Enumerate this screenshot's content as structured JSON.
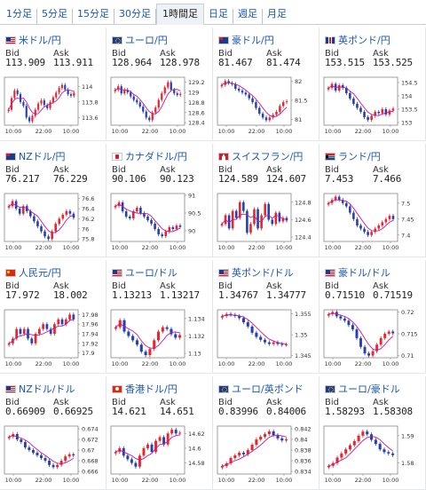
{
  "tabs": [
    {
      "label": "1分足",
      "active": false
    },
    {
      "label": "5分足",
      "active": false
    },
    {
      "label": "15分足",
      "active": false
    },
    {
      "label": "30分足",
      "active": false
    },
    {
      "label": "1時間足",
      "active": true
    },
    {
      "label": "日足",
      "active": false
    },
    {
      "label": "週足",
      "active": false
    },
    {
      "label": "月足",
      "active": false
    }
  ],
  "labels": {
    "bid": "Bid",
    "ask": "Ask"
  },
  "x_ticks": [
    "10:00",
    "22:00",
    "10:00"
  ],
  "colors": {
    "up": "#e8262b",
    "down": "#2440b8",
    "ma": "#c2189e",
    "link": "#1a56b0"
  },
  "pairs": [
    {
      "name": "米ドル/円",
      "flag": "f-us",
      "bid": "113.909",
      "ask": "113.911",
      "ticks": [
        "114",
        "113.8",
        "113.6"
      ],
      "lo": 113.5,
      "hi": 114.12,
      "series": [
        113.7,
        113.85,
        113.95,
        113.9,
        113.8,
        113.75,
        113.6,
        113.55,
        113.62,
        113.7,
        113.78,
        113.82,
        113.76,
        113.72,
        113.8,
        113.86,
        113.92,
        113.98,
        114.02,
        113.96,
        113.9,
        113.88,
        113.92
      ]
    },
    {
      "name": "ユーロ/円",
      "flag": "f-eu",
      "bid": "128.964",
      "ask": "128.978",
      "ticks": [
        "129.2",
        "129",
        "128.8",
        "128.6",
        "128.4"
      ],
      "lo": 128.35,
      "hi": 129.3,
      "series": [
        129.05,
        129.12,
        128.98,
        129.05,
        129.0,
        128.92,
        128.85,
        128.8,
        128.72,
        128.62,
        128.5,
        128.45,
        128.6,
        128.7,
        128.85,
        128.98,
        129.1,
        129.2,
        129.05,
        128.98,
        128.95,
        128.97
      ]
    },
    {
      "name": "豪ドル/円",
      "flag": "f-au",
      "bid": "81.467",
      "ask": "81.474",
      "ticks": [
        "82",
        "81.5",
        "81"
      ],
      "lo": 80.85,
      "hi": 82.1,
      "series": [
        81.9,
        82.0,
        81.95,
        81.92,
        81.8,
        81.75,
        81.7,
        81.65,
        81.55,
        81.45,
        81.3,
        81.15,
        81.05,
        80.98,
        81.05,
        81.12,
        81.2,
        81.35,
        81.45,
        81.47
      ]
    },
    {
      "name": "英ポンド/円",
      "flag": "f-gb",
      "bid": "153.515",
      "ask": "153.525",
      "ticks": [
        "154.5",
        "154",
        "153.5",
        "153"
      ],
      "lo": 152.9,
      "hi": 154.7,
      "series": [
        154.3,
        154.45,
        154.2,
        154.4,
        154.3,
        154.1,
        153.9,
        153.7,
        153.55,
        153.4,
        153.2,
        153.1,
        153.25,
        153.4,
        153.35,
        153.5,
        153.3,
        153.45,
        153.52
      ]
    },
    {
      "name": "NZドル/円",
      "flag": "f-nz",
      "bid": "76.217",
      "ask": "76.229",
      "ticks": [
        "76.6",
        "76.4",
        "76.2",
        "76",
        "75.8"
      ],
      "lo": 75.75,
      "hi": 76.7,
      "series": [
        76.45,
        76.55,
        76.4,
        76.3,
        76.45,
        76.35,
        76.25,
        76.15,
        76.05,
        75.95,
        75.85,
        75.8,
        75.95,
        76.1,
        76.2,
        76.28,
        76.35,
        76.3,
        76.22
      ]
    },
    {
      "name": "カナダドル/円",
      "flag": "f-ca",
      "bid": "90.106",
      "ask": "90.123",
      "ticks": [
        "91",
        "90.5",
        "90"
      ],
      "lo": 89.7,
      "hi": 91.05,
      "series": [
        90.7,
        90.8,
        90.55,
        90.4,
        90.35,
        90.55,
        90.65,
        90.5,
        90.4,
        90.3,
        90.2,
        90.05,
        89.9,
        89.85,
        89.98,
        90.1,
        90.05,
        90.15,
        90.11
      ]
    },
    {
      "name": "スイスフラン/円",
      "flag": "f-ch",
      "bid": "124.589",
      "ask": "124.607",
      "ticks": [
        "124.8",
        "124.6",
        "124.4"
      ],
      "lo": 124.35,
      "hi": 124.9,
      "series": [
        124.55,
        124.65,
        124.5,
        124.7,
        124.62,
        124.8,
        124.7,
        124.45,
        124.55,
        124.72,
        124.5,
        124.65,
        124.78,
        124.6,
        124.55,
        124.68,
        124.58,
        124.62,
        124.59
      ]
    },
    {
      "name": "ランド/円",
      "flag": "f-za",
      "bid": "7.453",
      "ask": "7.466",
      "ticks": [
        "7.5",
        "7.45",
        "7.4"
      ],
      "lo": 7.38,
      "hi": 7.53,
      "series": [
        7.5,
        7.51,
        7.52,
        7.51,
        7.5,
        7.49,
        7.47,
        7.45,
        7.43,
        7.42,
        7.41,
        7.4,
        7.41,
        7.42,
        7.43,
        7.44,
        7.45,
        7.46,
        7.45
      ]
    },
    {
      "name": "人民元/円",
      "flag": "f-cn",
      "bid": "17.972",
      "ask": "18.002",
      "ticks": [
        "17.98",
        "17.96",
        "17.94",
        "17.92",
        "17.9"
      ],
      "lo": 17.89,
      "hi": 17.99,
      "series": [
        17.92,
        17.93,
        17.95,
        17.94,
        17.95,
        17.93,
        17.92,
        17.94,
        17.95,
        17.96,
        17.95,
        17.94,
        17.96,
        17.97,
        17.96,
        17.97,
        17.98,
        17.97
      ]
    },
    {
      "name": "ユーロ/ドル",
      "flag": "f-us",
      "bid": "1.13213",
      "ask": "1.13217",
      "ticks": [
        "1.134",
        "1.132",
        "1.13"
      ],
      "lo": 1.1295,
      "hi": 1.135,
      "series": [
        1.133,
        1.1338,
        1.1325,
        1.132,
        1.1315,
        1.131,
        1.1302,
        1.1298,
        1.1305,
        1.1315,
        1.1325,
        1.133,
        1.1328,
        1.1322,
        1.1318,
        1.1321
      ]
    },
    {
      "name": "英ポンド/ドル",
      "flag": "f-us",
      "bid": "1.34767",
      "ask": "1.34777",
      "ticks": [
        "1.355",
        "1.35",
        "1.345"
      ],
      "lo": 1.3445,
      "hi": 1.356,
      "series": [
        1.3545,
        1.355,
        1.3548,
        1.3545,
        1.354,
        1.353,
        1.352,
        1.3505,
        1.3495,
        1.3488,
        1.3482,
        1.3478,
        1.3482,
        1.3478,
        1.3476,
        1.3477
      ]
    },
    {
      "name": "豪ドル/ドル",
      "flag": "f-us",
      "bid": "0.71510",
      "ask": "0.71519",
      "ticks": [
        "0.72",
        "0.715",
        "0.71"
      ],
      "lo": 0.7095,
      "hi": 0.7205,
      "series": [
        0.7195,
        0.72,
        0.719,
        0.7185,
        0.718,
        0.717,
        0.716,
        0.714,
        0.712,
        0.7105,
        0.71,
        0.711,
        0.7125,
        0.714,
        0.715,
        0.7155,
        0.7151
      ]
    },
    {
      "name": "NZドル/ドル",
      "flag": "f-us",
      "bid": "0.66909",
      "ask": "0.66925",
      "ticks": [
        "0.674",
        "0.672",
        "0.67",
        "0.668",
        "0.666"
      ],
      "lo": 0.6655,
      "hi": 0.6745,
      "series": [
        0.6725,
        0.673,
        0.672,
        0.6715,
        0.6705,
        0.67,
        0.6695,
        0.669,
        0.6685,
        0.668,
        0.6672,
        0.6668,
        0.6672,
        0.668,
        0.6688,
        0.6692,
        0.669
      ]
    },
    {
      "name": "香港ドル/円",
      "flag": "f-hk",
      "bid": "14.621",
      "ask": "14.651",
      "ticks": [
        "14.62",
        "14.6",
        "14.58"
      ],
      "lo": 14.565,
      "hi": 14.63,
      "series": [
        14.595,
        14.6,
        14.59,
        14.585,
        14.58,
        14.575,
        14.59,
        14.6,
        14.605,
        14.595,
        14.61,
        14.615,
        14.605,
        14.62,
        14.625,
        14.62,
        14.621
      ]
    },
    {
      "name": "ユーロ/英ポンド",
      "flag": "f-eu",
      "bid": "0.83996",
      "ask": "0.84006",
      "ticks": [
        "0.842",
        "0.84",
        "0.838",
        "0.836",
        "0.834"
      ],
      "lo": 0.8335,
      "hi": 0.8425,
      "series": [
        0.835,
        0.8355,
        0.8365,
        0.837,
        0.8375,
        0.8372,
        0.838,
        0.839,
        0.84,
        0.8405,
        0.841,
        0.8415,
        0.8408,
        0.8402,
        0.8398,
        0.84
      ]
    },
    {
      "name": "ユーロ/豪ドル",
      "flag": "f-eu",
      "bid": "1.58293",
      "ask": "1.58308",
      "ticks": [
        "1.59",
        "1.58"
      ],
      "lo": 1.576,
      "hi": 1.5935,
      "series": [
        1.579,
        1.58,
        1.582,
        1.5835,
        1.585,
        1.5865,
        1.588,
        1.59,
        1.5915,
        1.5905,
        1.5885,
        1.587,
        1.585,
        1.584,
        1.5835,
        1.5829
      ]
    }
  ]
}
